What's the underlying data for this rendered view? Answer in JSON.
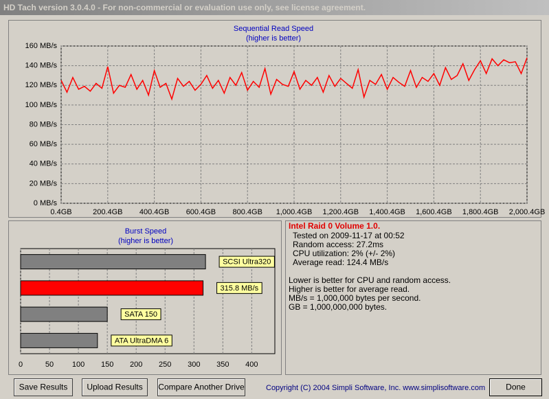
{
  "window": {
    "title": "HD Tach version 3.0.4.0  - For non-commercial or evaluation use only, see license agreement."
  },
  "chart_data": [
    {
      "type": "line",
      "title": "Sequential Read Speed",
      "subtitle": "(higher is better)",
      "x": [
        0.4,
        25.4,
        50.4,
        75.4,
        100.4,
        125.4,
        150.4,
        175.4,
        200.4,
        225.4,
        250.4,
        275.4,
        300.4,
        325.4,
        350.4,
        375.4,
        400.4,
        425.4,
        450.4,
        475.4,
        500.4,
        525.4,
        550.4,
        575.4,
        600.4,
        625.4,
        650.4,
        675.4,
        700.4,
        725.4,
        750.4,
        775.4,
        800.4,
        825.4,
        850.4,
        875.4,
        900.4,
        925.4,
        950.4,
        975.4,
        1000.4,
        1025.4,
        1050.4,
        1075.4,
        1100.4,
        1125.4,
        1150.4,
        1175.4,
        1200.4,
        1225.4,
        1250.4,
        1275.4,
        1300.4,
        1325.4,
        1350.4,
        1375.4,
        1400.4,
        1425.4,
        1450.4,
        1475.4,
        1500.4,
        1525.4,
        1550.4,
        1575.4,
        1600.4,
        1625.4,
        1650.4,
        1675.4,
        1700.4,
        1725.4,
        1750.4,
        1775.4,
        1800.4,
        1825.4,
        1850.4,
        1875.4,
        1900.4,
        1925.4,
        1950.4,
        1975.4,
        2000.4
      ],
      "values": [
        125,
        113,
        128,
        116,
        119,
        114,
        122,
        117,
        139,
        112,
        120,
        118,
        131,
        116,
        125,
        110,
        135,
        118,
        122,
        106,
        127,
        119,
        124,
        115,
        121,
        130,
        117,
        125,
        112,
        128,
        120,
        133,
        115,
        124,
        118,
        137,
        111,
        126,
        121,
        119,
        134,
        116,
        125,
        120,
        128,
        113,
        130,
        119,
        127,
        122,
        117,
        136,
        108,
        125,
        121,
        131,
        116,
        128,
        123,
        119,
        135,
        118,
        128,
        124,
        132,
        120,
        138,
        126,
        130,
        142,
        125,
        136,
        145,
        132,
        147,
        140,
        146,
        143,
        144,
        132,
        148
      ],
      "color": "#ff0000",
      "xlim": [
        0.4,
        2000.4
      ],
      "xticks": [
        {
          "value": 0.4,
          "label": "0.4GB"
        },
        {
          "value": 200.4,
          "label": "200.4GB"
        },
        {
          "value": 400.4,
          "label": "400.4GB"
        },
        {
          "value": 600.4,
          "label": "600.4GB"
        },
        {
          "value": 800.4,
          "label": "800.4GB"
        },
        {
          "value": 1000.4,
          "label": "1,000.4GB"
        },
        {
          "value": 1200.4,
          "label": "1,200.4GB"
        },
        {
          "value": 1400.4,
          "label": "1,400.4GB"
        },
        {
          "value": 1600.4,
          "label": "1,600.4GB"
        },
        {
          "value": 1800.4,
          "label": "1,800.4GB"
        },
        {
          "value": 2000.4,
          "label": "2,000.4GB"
        }
      ],
      "ylim": [
        0,
        160
      ],
      "yticks": [
        {
          "value": 0,
          "label": "0 MB/s"
        },
        {
          "value": 20,
          "label": "20 MB/s"
        },
        {
          "value": 40,
          "label": "40 MB/s"
        },
        {
          "value": 60,
          "label": "60 MB/s"
        },
        {
          "value": 80,
          "label": "80 MB/s"
        },
        {
          "value": 100,
          "label": "100 MB/s"
        },
        {
          "value": 120,
          "label": "120 MB/s"
        },
        {
          "value": 140,
          "label": "140 MB/s"
        },
        {
          "value": 160,
          "label": "160 MB/s"
        }
      ],
      "grid": true
    },
    {
      "type": "hbar",
      "title": "Burst Speed",
      "subtitle": "(higher is better)",
      "categories": [
        "SCSI Ultra320",
        null,
        "SATA 150",
        "ATA UltraDMA 6"
      ],
      "values": [
        320,
        315.8,
        150,
        133
      ],
      "value_labels": [
        null,
        "315.8 MB/s",
        null,
        null
      ],
      "colors": [
        "#808080",
        "#ff0000",
        "#808080",
        "#808080"
      ],
      "xlim": [
        0,
        440
      ],
      "xticks": [
        0,
        50,
        100,
        150,
        200,
        250,
        300,
        350,
        400
      ],
      "grid": true
    }
  ],
  "info": {
    "heading": "Intel Raid 0 Volume 1.0.",
    "details": [
      "Tested on 2009-11-17 at 00:52",
      "Random access: 27.2ms",
      "CPU utilization: 2% (+/- 2%)",
      "Average read: 124.4 MB/s"
    ],
    "notes": [
      "Lower is better for CPU and random access.",
      "Higher is better for average read.",
      "MB/s = 1,000,000 bytes per second.",
      "GB = 1,000,000,000 bytes."
    ]
  },
  "buttons": [
    "Save Results",
    "Upload Results",
    "Compare Another Drive",
    "Done"
  ],
  "copyright": "Copyright (C) 2004 Simpli Software, Inc. www.simplisoftware.com"
}
